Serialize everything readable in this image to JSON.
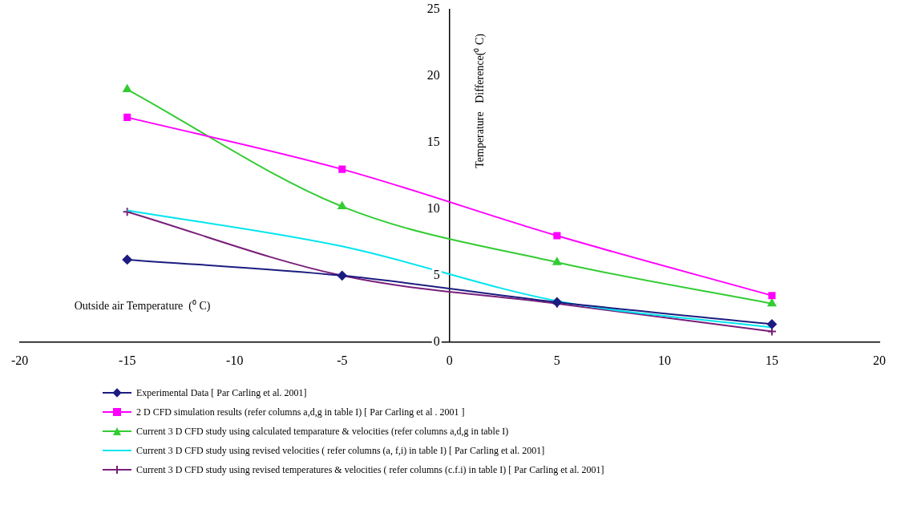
{
  "chart_data": {
    "type": "line",
    "xlabel": "Outside air Temperature  (⁰ C)",
    "ylabel": "Temperature   Difference(⁰ C)",
    "xlim": [
      -20,
      20
    ],
    "xticks": [
      -20,
      -15,
      -10,
      -5,
      0,
      5,
      10,
      15,
      20
    ],
    "ylim": [
      0,
      25
    ],
    "yticks": [
      0,
      5,
      10,
      15,
      20,
      25
    ],
    "grid": false,
    "legend": "bottom",
    "line_style": "solid",
    "x": [
      -15,
      -5,
      5,
      15
    ],
    "series": [
      {
        "name": "Experimental Data [ Par Carling et al. 2001]",
        "color": "#1c1c80",
        "marker": "diamond",
        "values": [
          6.2,
          5.0,
          3.0,
          1.35
        ]
      },
      {
        "name": "2 D CFD simulation results (refer columns a,d,g in table I) [ Par Carling et al . 2001 ]",
        "color": "#ff00ff",
        "marker": "square",
        "values": [
          16.9,
          13.0,
          8.0,
          3.5
        ]
      },
      {
        "name": "Current 3 D CFD study using calculated temparature & velocities (refer columns a,d,g in table I)",
        "color": "#33cc33",
        "marker": "triangle",
        "values": [
          19.0,
          10.2,
          6.0,
          2.9
        ]
      },
      {
        "name": "Current 3 D CFD study using revised velocities  ( refer columns (a, f,i) in table I) [ Par Carling et al. 2001]",
        "color": "#00e5ee",
        "marker": "none",
        "values": [
          9.9,
          7.2,
          3.1,
          1.1
        ]
      },
      {
        "name": "Current 3 D CFD study using revised temperatures & velocities  ( refer columns (c.f.i) in table I) [ Par Carling et al. 2001]",
        "color": "#7a1f7a",
        "marker": "cross",
        "values": [
          9.8,
          5.0,
          2.9,
          0.8
        ]
      }
    ]
  }
}
